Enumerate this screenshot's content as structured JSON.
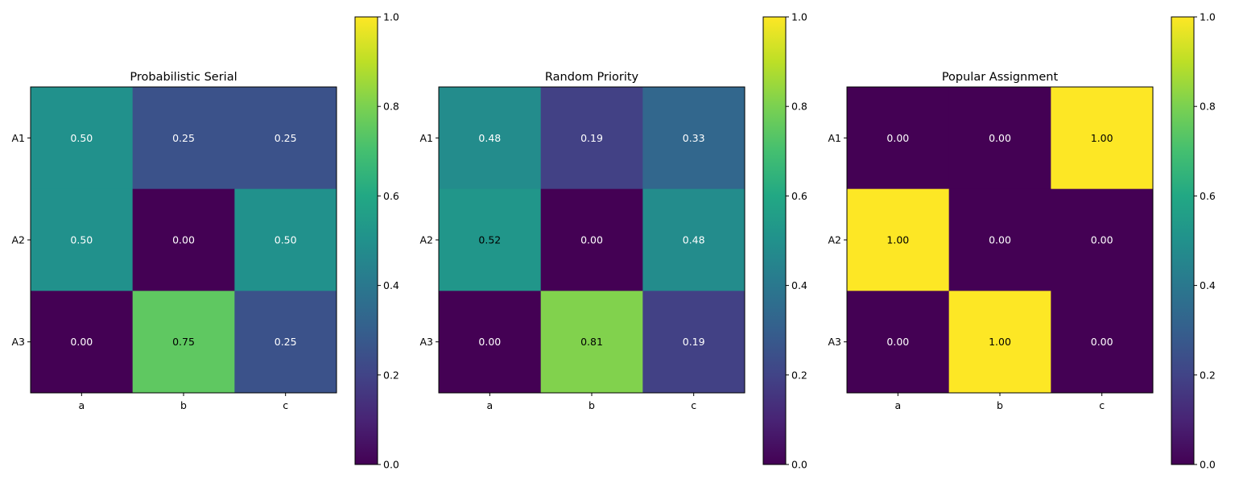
{
  "chart_data": [
    {
      "type": "heatmap",
      "title": "Probabilistic Serial",
      "rows": [
        "A1",
        "A2",
        "A3"
      ],
      "columns": [
        "a",
        "b",
        "c"
      ],
      "values": [
        [
          0.5,
          0.25,
          0.25
        ],
        [
          0.5,
          0.0,
          0.5
        ],
        [
          0.0,
          0.75,
          0.25
        ]
      ],
      "labels": [
        [
          "0.50",
          "0.25",
          "0.25"
        ],
        [
          "0.50",
          "0.00",
          "0.50"
        ],
        [
          "0.00",
          "0.75",
          "0.25"
        ]
      ],
      "colormap": "viridis",
      "colorbar": {
        "range": [
          0.0,
          1.0
        ],
        "ticks": [
          "0.0",
          "0.2",
          "0.4",
          "0.6",
          "0.8",
          "1.0"
        ]
      }
    },
    {
      "type": "heatmap",
      "title": "Random Priority",
      "rows": [
        "A1",
        "A2",
        "A3"
      ],
      "columns": [
        "a",
        "b",
        "c"
      ],
      "values": [
        [
          0.48,
          0.19,
          0.33
        ],
        [
          0.52,
          0.0,
          0.48
        ],
        [
          0.0,
          0.81,
          0.19
        ]
      ],
      "labels": [
        [
          "0.48",
          "0.19",
          "0.33"
        ],
        [
          "0.52",
          "0.00",
          "0.48"
        ],
        [
          "0.00",
          "0.81",
          "0.19"
        ]
      ],
      "colormap": "viridis",
      "colorbar": {
        "range": [
          0.0,
          1.0
        ],
        "ticks": [
          "0.0",
          "0.2",
          "0.4",
          "0.6",
          "0.8",
          "1.0"
        ]
      }
    },
    {
      "type": "heatmap",
      "title": "Popular Assignment",
      "rows": [
        "A1",
        "A2",
        "A3"
      ],
      "columns": [
        "a",
        "b",
        "c"
      ],
      "values": [
        [
          0.0,
          0.0,
          1.0
        ],
        [
          1.0,
          0.0,
          0.0
        ],
        [
          0.0,
          1.0,
          0.0
        ]
      ],
      "labels": [
        [
          "0.00",
          "0.00",
          "1.00"
        ],
        [
          "1.00",
          "0.00",
          "0.00"
        ],
        [
          "0.00",
          "1.00",
          "0.00"
        ]
      ],
      "colormap": "viridis",
      "colorbar": {
        "range": [
          0.0,
          1.0
        ],
        "ticks": [
          "0.0",
          "0.2",
          "0.4",
          "0.6",
          "0.8",
          "1.0"
        ]
      }
    }
  ]
}
